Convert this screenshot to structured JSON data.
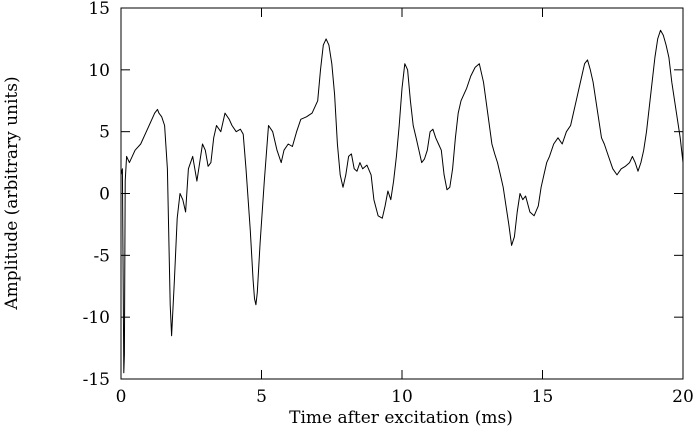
{
  "chart_data": {
    "type": "line",
    "title": "",
    "xlabel": "Time after excitation (ms)",
    "ylabel": "Amplitude (arbitrary units)",
    "xlim": [
      0,
      20
    ],
    "ylim": [
      -15,
      15
    ],
    "xticks": [
      0,
      5,
      10,
      15,
      20
    ],
    "xtick_labels": [
      "0",
      "5",
      "10",
      "15",
      "20"
    ],
    "yticks": [
      -15,
      -10,
      -5,
      0,
      5,
      10,
      15
    ],
    "ytick_labels": [
      "-15",
      "-10",
      "-5",
      "0",
      "5",
      "10",
      "15"
    ],
    "grid": false,
    "legend": "none",
    "line_color": "#000000",
    "series": [
      {
        "x": [
          0.0,
          0.05,
          0.1,
          0.12,
          0.15,
          0.2,
          0.3,
          0.5,
          0.7,
          0.9,
          1.1,
          1.2,
          1.3,
          1.35,
          1.45,
          1.55,
          1.65,
          1.75,
          1.8,
          1.9,
          2.0,
          2.1,
          2.2,
          2.3,
          2.4,
          2.55,
          2.7,
          2.8,
          2.9,
          3.0,
          3.1,
          3.2,
          3.3,
          3.4,
          3.55,
          3.7,
          3.85,
          3.95,
          4.1,
          4.25,
          4.35,
          4.45,
          4.6,
          4.7,
          4.75,
          4.8,
          4.85,
          4.95,
          5.1,
          5.25,
          5.4,
          5.55,
          5.7,
          5.8,
          5.95,
          6.1,
          6.25,
          6.4,
          6.6,
          6.8,
          7.0,
          7.1,
          7.2,
          7.3,
          7.4,
          7.5,
          7.6,
          7.7,
          7.8,
          7.9,
          8.0,
          8.1,
          8.2,
          8.3,
          8.4,
          8.5,
          8.6,
          8.75,
          8.9,
          9.0,
          9.15,
          9.3,
          9.4,
          9.5,
          9.6,
          9.7,
          9.8,
          9.9,
          10.0,
          10.1,
          10.2,
          10.3,
          10.4,
          10.5,
          10.6,
          10.7,
          10.8,
          10.9,
          11.0,
          11.1,
          11.2,
          11.3,
          11.4,
          11.5,
          11.6,
          11.7,
          11.8,
          11.9,
          12.0,
          12.1,
          12.2,
          12.3,
          12.45,
          12.6,
          12.75,
          12.9,
          13.05,
          13.2,
          13.3,
          13.4,
          13.5,
          13.6,
          13.7,
          13.8,
          13.9,
          14.0,
          14.1,
          14.2,
          14.3,
          14.4,
          14.55,
          14.7,
          14.85,
          14.95,
          15.05,
          15.15,
          15.25,
          15.4,
          15.55,
          15.7,
          15.85,
          16.0,
          16.1,
          16.2,
          16.3,
          16.4,
          16.5,
          16.6,
          16.7,
          16.8,
          16.9,
          17.0,
          17.1,
          17.2,
          17.35,
          17.5,
          17.65,
          17.8,
          17.95,
          18.1,
          18.2,
          18.3,
          18.4,
          18.5,
          18.6,
          18.7,
          18.8,
          18.9,
          19.0,
          19.1,
          19.2,
          19.3,
          19.4,
          19.5,
          19.6,
          19.7,
          19.8,
          19.9,
          20.0
        ],
        "y": [
          1.5,
          2.0,
          -14.5,
          -13.0,
          1.0,
          3.0,
          2.5,
          3.5,
          4.0,
          5.0,
          6.0,
          6.5,
          6.8,
          6.5,
          6.2,
          5.5,
          2.0,
          -9.0,
          -11.5,
          -7.0,
          -2.0,
          0.0,
          -0.5,
          -1.5,
          2.0,
          3.0,
          1.0,
          2.5,
          4.0,
          3.5,
          2.2,
          2.5,
          4.5,
          5.5,
          5.0,
          6.5,
          6.0,
          5.5,
          5.0,
          5.2,
          4.8,
          2.0,
          -3.0,
          -7.0,
          -8.5,
          -9.0,
          -8.0,
          -4.0,
          1.0,
          5.5,
          5.0,
          3.5,
          2.5,
          3.5,
          4.0,
          3.8,
          5.0,
          6.0,
          6.2,
          6.5,
          7.5,
          10.0,
          12.0,
          12.5,
          12.0,
          10.5,
          8.0,
          4.0,
          1.5,
          0.5,
          1.5,
          3.0,
          3.2,
          2.0,
          1.8,
          2.5,
          2.0,
          2.3,
          1.5,
          -0.5,
          -1.8,
          -2.0,
          -1.0,
          0.2,
          -0.5,
          1.0,
          3.0,
          5.5,
          8.5,
          10.5,
          10.0,
          7.5,
          5.5,
          4.5,
          3.5,
          2.5,
          2.8,
          3.5,
          5.0,
          5.2,
          4.5,
          4.0,
          3.5,
          1.5,
          0.3,
          0.5,
          2.0,
          4.5,
          6.5,
          7.5,
          8.0,
          8.5,
          9.5,
          10.2,
          10.5,
          9.0,
          6.5,
          4.0,
          3.2,
          2.5,
          1.5,
          0.5,
          -1.0,
          -2.5,
          -4.2,
          -3.5,
          -1.5,
          0.0,
          -0.5,
          -0.2,
          -1.5,
          -1.8,
          -1.0,
          0.5,
          1.5,
          2.5,
          3.0,
          4.0,
          4.5,
          4.0,
          5.0,
          5.5,
          6.5,
          7.5,
          8.5,
          9.5,
          10.5,
          10.8,
          10.0,
          9.0,
          7.5,
          6.0,
          4.5,
          4.0,
          3.0,
          2.0,
          1.5,
          2.0,
          2.2,
          2.5,
          3.0,
          2.5,
          1.8,
          2.5,
          3.5,
          5.0,
          7.0,
          9.0,
          11.0,
          12.5,
          13.2,
          12.8,
          12.0,
          11.0,
          9.0,
          7.5,
          6.0,
          4.5,
          2.5
        ]
      }
    ]
  }
}
